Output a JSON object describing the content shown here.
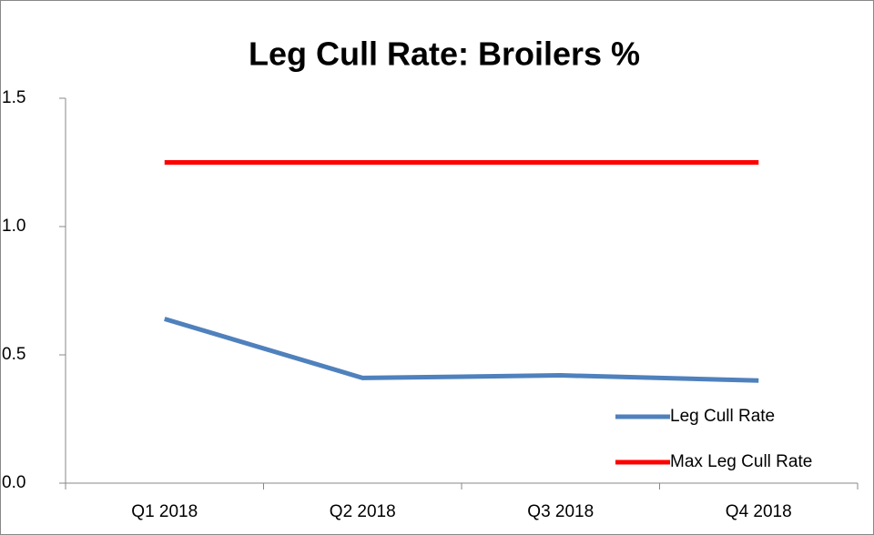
{
  "chart_data": {
    "type": "line",
    "title": "Leg Cull Rate: Broilers %",
    "categories": [
      "Q1 2018",
      "Q2 2018",
      "Q3 2018",
      "Q4 2018"
    ],
    "series": [
      {
        "name": "Leg Cull Rate",
        "color": "#4f81bd",
        "values": [
          0.64,
          0.41,
          0.42,
          0.4
        ]
      },
      {
        "name": "Max Leg Cull Rate",
        "color": "#ff0000",
        "values": [
          1.25,
          1.25,
          1.25,
          1.25
        ]
      }
    ],
    "ylim": [
      0,
      1.5
    ],
    "yticks": [
      {
        "value": 0,
        "label": "0.0"
      },
      0.5,
      {
        "value": 1,
        "label": "1.0"
      },
      1.5
    ],
    "grid": false,
    "legend": "lower right"
  }
}
